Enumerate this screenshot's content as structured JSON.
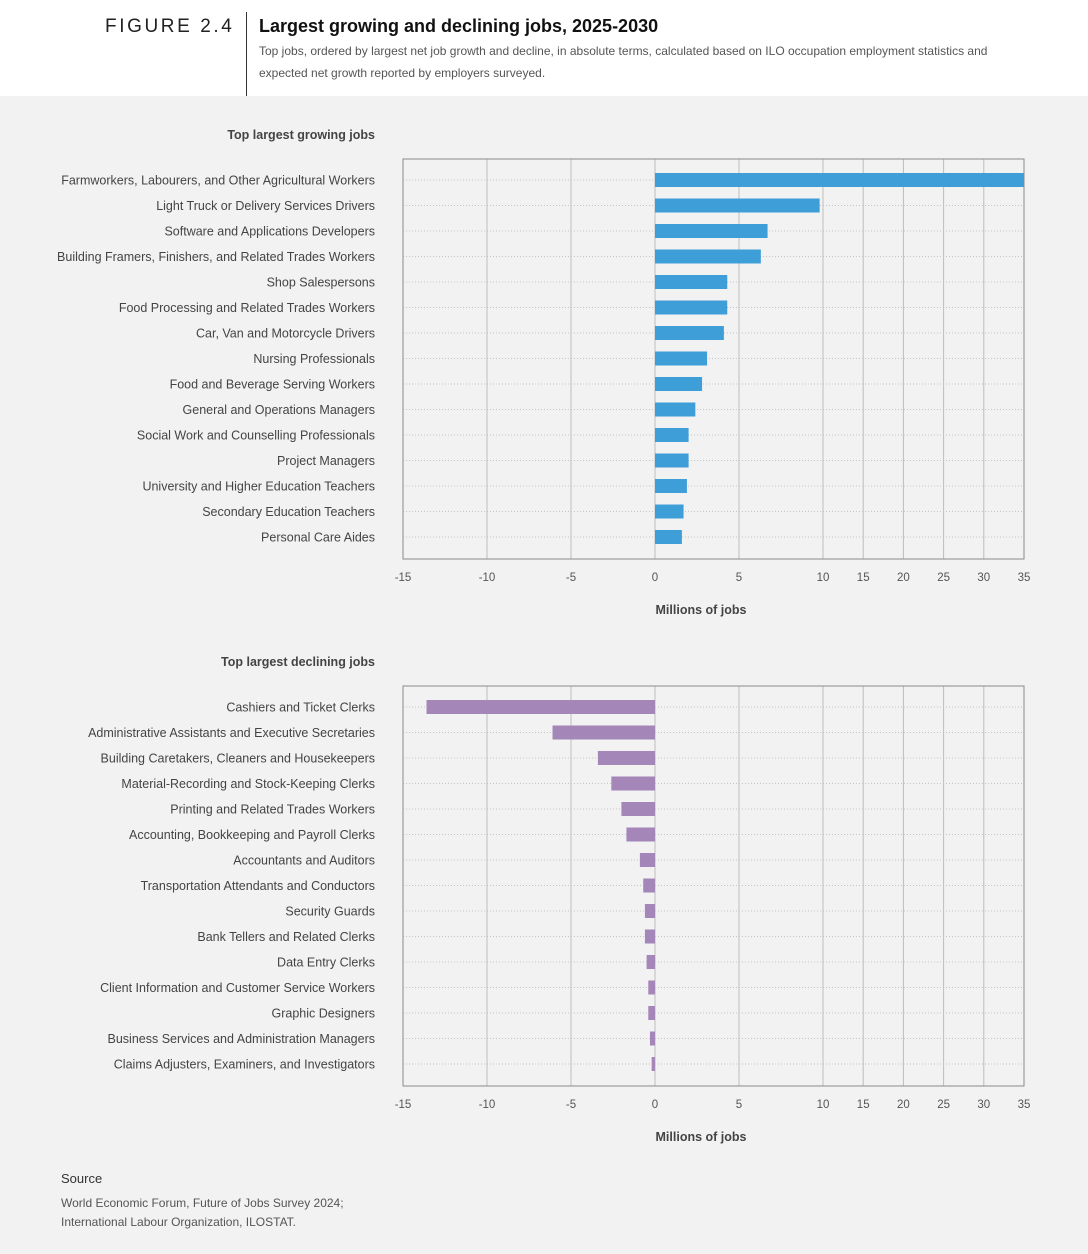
{
  "header": {
    "figure_label": "FIGURE 2.4",
    "title": "Largest growing and declining jobs, 2025-2030",
    "subtitle": "Top jobs, ordered by largest net job growth and decline, in absolute terms, calculated based on ILO occupation employment statistics and expected net growth  reported by employers surveyed."
  },
  "colors": {
    "growing": "#3e9ed8",
    "declining": "#a487b8"
  },
  "chart_data": [
    {
      "type": "bar",
      "orientation": "horizontal",
      "title": "Top largest growing jobs",
      "xlabel": "Millions of jobs",
      "ylabel": "",
      "xlim": [
        -15,
        35
      ],
      "xticks": [
        -15,
        -10,
        -5,
        0,
        5,
        10,
        15,
        20,
        25,
        30,
        35
      ],
      "grid": true,
      "categories": [
        "Farmworkers, Labourers, and Other Agricultural Workers",
        "Light Truck or Delivery Services Drivers",
        "Software and Applications Developers",
        "Building Framers, Finishers, and Related Trades Workers",
        "Shop Salespersons",
        "Food Processing and Related Trades Workers",
        "Car, Van and Motorcycle Drivers",
        "Nursing Professionals",
        "Food and Beverage Serving Workers",
        "General and Operations Managers",
        "Social Work and Counselling Professionals",
        "Project Managers",
        "University and Higher Education Teachers",
        "Secondary Education Teachers",
        "Personal Care Aides"
      ],
      "values": [
        35,
        9.8,
        6.7,
        6.3,
        4.3,
        4.3,
        4.1,
        3.1,
        2.8,
        2.4,
        2.0,
        2.0,
        1.9,
        1.7,
        1.6
      ]
    },
    {
      "type": "bar",
      "orientation": "horizontal",
      "title": "Top largest declining jobs",
      "xlabel": "Millions of jobs",
      "ylabel": "",
      "xlim": [
        -15,
        35
      ],
      "xticks": [
        -15,
        -10,
        -5,
        0,
        5,
        10,
        15,
        20,
        25,
        30,
        35
      ],
      "grid": true,
      "categories": [
        "Cashiers and Ticket Clerks",
        "Administrative Assistants and Executive Secretaries",
        "Building Caretakers, Cleaners and Housekeepers",
        "Material-Recording and Stock-Keeping Clerks",
        "Printing and Related Trades Workers",
        "Accounting, Bookkeeping and Payroll Clerks",
        "Accountants and Auditors",
        "Transportation Attendants and Conductors",
        "Security Guards",
        "Bank Tellers and Related Clerks",
        "Data Entry Clerks",
        "Client Information and Customer Service Workers",
        "Graphic Designers",
        "Business Services and Administration Managers",
        "Claims Adjusters, Examiners, and Investigators"
      ],
      "values": [
        -13.6,
        -6.1,
        -3.4,
        -2.6,
        -2.0,
        -1.7,
        -0.9,
        -0.7,
        -0.6,
        -0.6,
        -0.5,
        -0.4,
        -0.4,
        -0.3,
        -0.2
      ]
    }
  ],
  "source": {
    "heading": "Source",
    "lines": [
      "World Economic Forum, Future of Jobs Survey 2024;",
      "International Labour Organization, ILOSTAT."
    ]
  }
}
